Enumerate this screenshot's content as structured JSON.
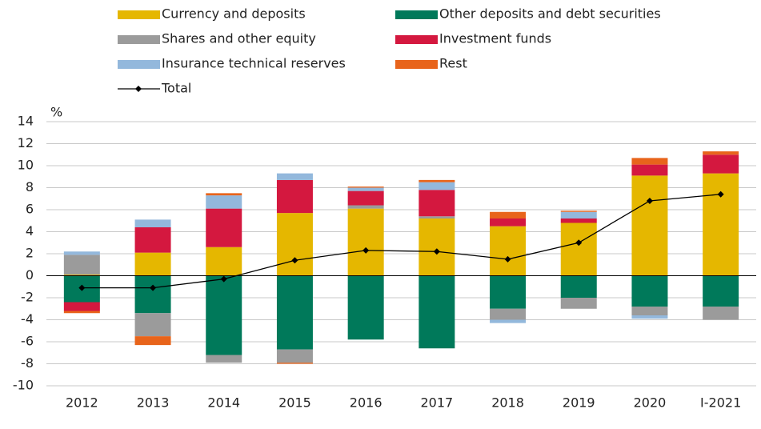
{
  "chart_data": {
    "type": "bar",
    "stacked": true,
    "y_unit": "%",
    "categories": [
      "2012",
      "2013",
      "2014",
      "2015",
      "2016",
      "2017",
      "2018",
      "2019",
      "2020",
      "I-2021"
    ],
    "series": [
      {
        "name": "Currency and deposits",
        "color": "#e5b700",
        "values": [
          0.1,
          2.1,
          2.6,
          5.7,
          6.1,
          5.2,
          4.5,
          4.8,
          9.1,
          9.3
        ]
      },
      {
        "name": "Other deposits and debt securities",
        "color": "#00795a",
        "values": [
          -2.4,
          -3.4,
          -7.2,
          -6.7,
          -5.8,
          -6.6,
          -3.0,
          -2.0,
          -2.8,
          -2.8
        ]
      },
      {
        "name": "Shares and other equity",
        "color": "#9b9b9b",
        "values": [
          1.8,
          -2.1,
          -0.7,
          -1.2,
          0.3,
          0.2,
          -1.0,
          -1.0,
          -0.8,
          -1.2
        ]
      },
      {
        "name": "Investment funds",
        "color": "#d4183f",
        "values": [
          -0.8,
          2.3,
          3.5,
          3.0,
          1.3,
          2.4,
          0.7,
          0.4,
          1.0,
          1.7
        ]
      },
      {
        "name": "Insurance technical reserves",
        "color": "#93b8dc",
        "values": [
          0.3,
          0.7,
          1.2,
          0.6,
          0.3,
          0.7,
          -0.3,
          0.6,
          -0.3,
          0
        ]
      },
      {
        "name": "Rest",
        "color": "#e8641b",
        "values": [
          -0.2,
          -0.8,
          0.2,
          -0.1,
          0.1,
          0.2,
          0.6,
          0.1,
          0.6,
          0.3
        ]
      }
    ],
    "total": {
      "name": "Total",
      "color": "#000000",
      "values": [
        -1.1,
        -1.1,
        -0.3,
        1.4,
        2.3,
        2.2,
        1.5,
        3.0,
        6.8,
        7.4
      ]
    },
    "ylim": [
      -10,
      14
    ],
    "yticks": [
      -10,
      -8,
      -6,
      -4,
      -2,
      0,
      2,
      4,
      6,
      8,
      10,
      12,
      14
    ],
    "grid": true
  }
}
